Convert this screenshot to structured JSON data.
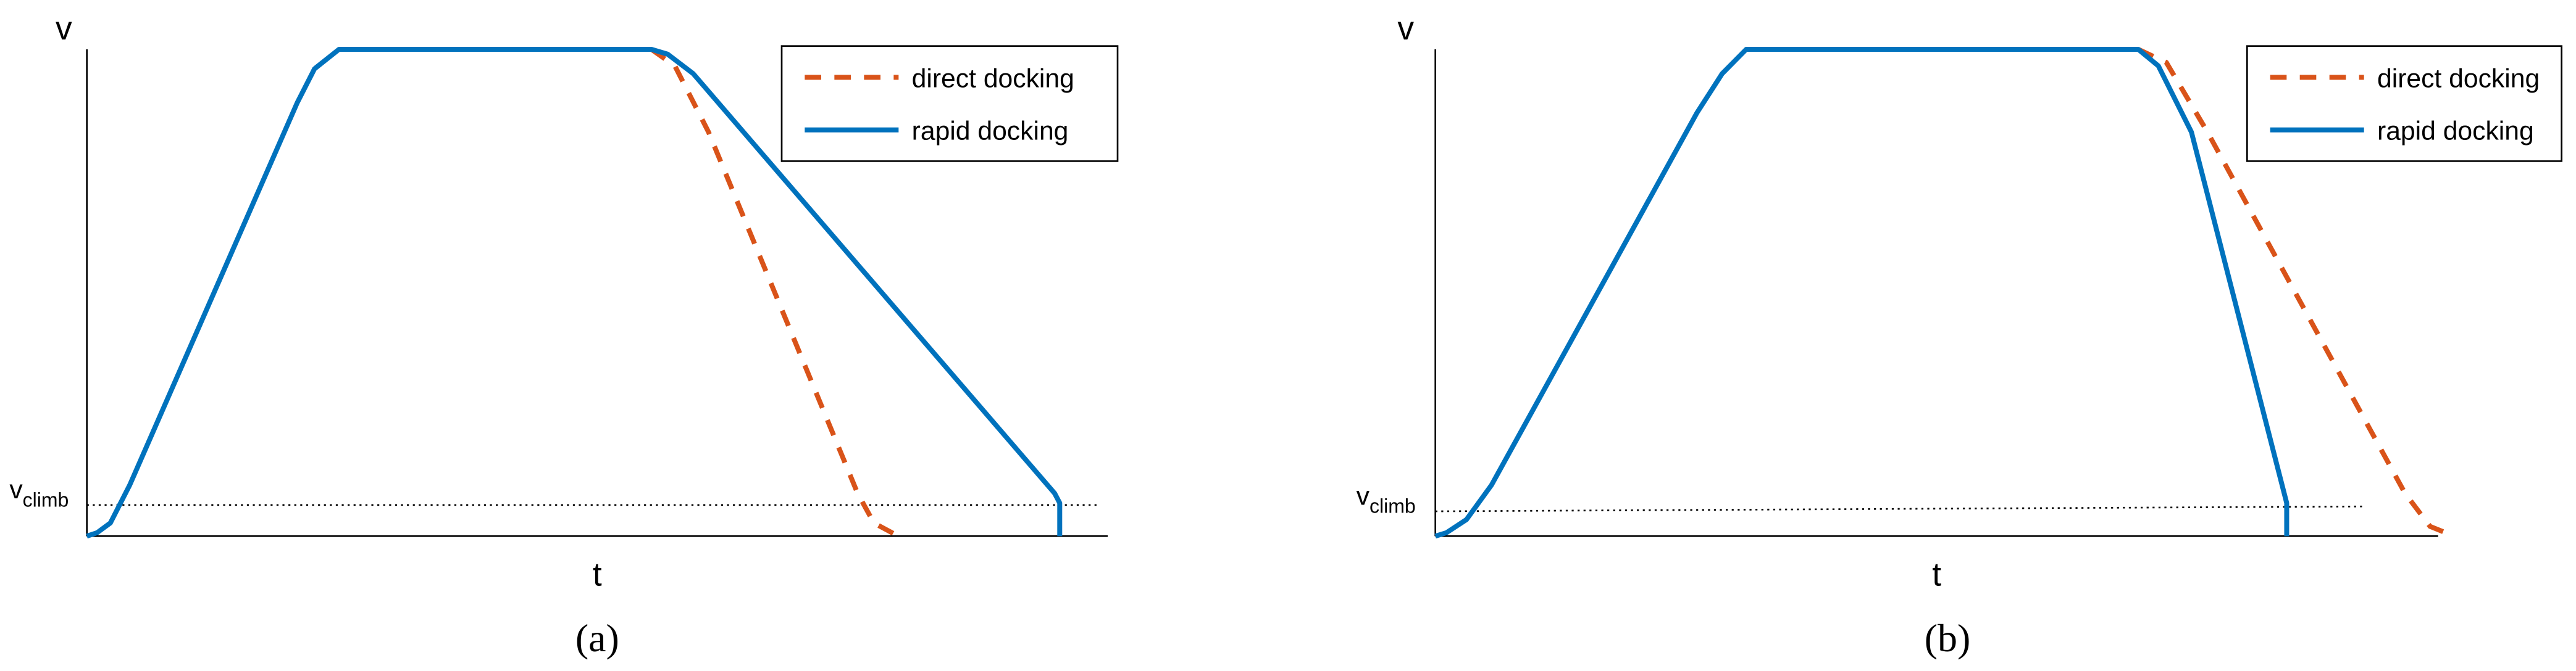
{
  "chart_data": [
    {
      "type": "line",
      "x_label": "t",
      "y_label": "v",
      "caption": "(a)",
      "xlim": [
        0,
        100
      ],
      "ylim": [
        0,
        100
      ],
      "legend": "upper right",
      "series": [
        {
          "name": "direct docking",
          "color": "#d95319",
          "dashed": true,
          "x": [
            55.3,
            57.6,
            60.9,
            75.5,
            77.1,
            79.5
          ],
          "values": [
            100,
            96.6,
            83,
            8.8,
            2.7,
            0
          ]
        },
        {
          "name": "rapid docking",
          "color": "#0072bd",
          "dashed": false,
          "x": [
            0,
            1,
            2.3,
            4.2,
            20.6,
            22.3,
            24.7,
            55.3,
            56.9,
            59.4,
            94.8,
            95.3,
            95.3
          ],
          "values": [
            0,
            0.7,
            2.7,
            10.5,
            89,
            96,
            100,
            100,
            99,
            95,
            8.8,
            6.8,
            0
          ]
        }
      ],
      "reference_line": {
        "label": "v",
        "label_subscript": "climb",
        "x": [
          0,
          99
        ],
        "y": [
          6.4,
          6.4
        ]
      }
    },
    {
      "type": "line",
      "x_label": "t",
      "y_label": "v",
      "caption": "(b)",
      "xlim": [
        0,
        100
      ],
      "ylim": [
        0,
        100
      ],
      "legend": "upper right",
      "series": [
        {
          "name": "direct docking",
          "color": "#d95319",
          "dashed": true,
          "x": [
            70.1,
            72.9,
            77,
            96.7,
            99.2,
            101.6
          ],
          "values": [
            100,
            97.3,
            83,
            8.8,
            2,
            0
          ]
        },
        {
          "name": "rapid docking",
          "color": "#0072bd",
          "dashed": false,
          "x": [
            0,
            1.1,
            3.1,
            5.6,
            26.1,
            28.6,
            31,
            70.1,
            72.1,
            75.4,
            84.9,
            84.9
          ],
          "values": [
            0,
            0.7,
            3.4,
            10.5,
            87,
            95,
            100,
            100,
            96.6,
            83,
            6.8,
            0
          ]
        }
      ],
      "reference_line": {
        "label": "v",
        "label_subscript": "climb",
        "x": [
          0,
          92.6
        ],
        "y": [
          5.1,
          6.1
        ]
      }
    }
  ]
}
